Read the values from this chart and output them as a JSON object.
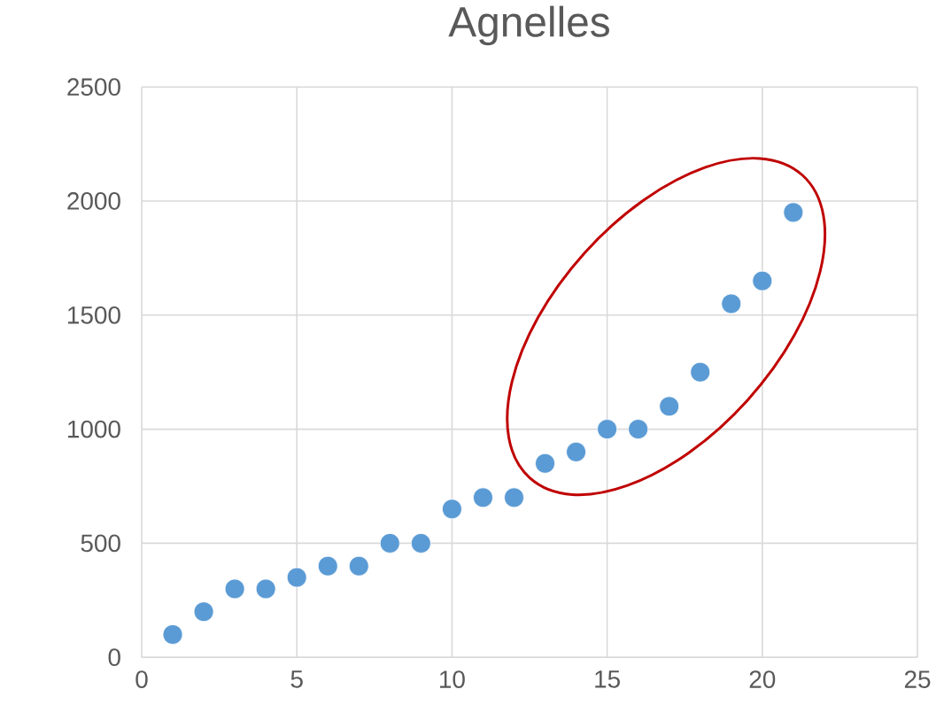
{
  "chart_data": {
    "type": "scatter",
    "title": "Agnelles",
    "x": [
      1,
      2,
      3,
      4,
      5,
      6,
      7,
      8,
      9,
      10,
      11,
      12,
      13,
      14,
      15,
      16,
      17,
      18,
      19,
      20,
      21
    ],
    "values": [
      100,
      200,
      300,
      300,
      350,
      400,
      400,
      500,
      500,
      650,
      700,
      700,
      850,
      900,
      1000,
      1000,
      1100,
      1250,
      1550,
      1650,
      1950
    ],
    "color": "#5b9bd5",
    "marker": "circle",
    "grid": true,
    "xlim": [
      0,
      25
    ],
    "xticks": [
      0,
      5,
      10,
      15,
      20,
      25
    ],
    "ylim": [
      0,
      2500
    ],
    "yticks": [
      0,
      500,
      1000,
      1500,
      2000,
      2500
    ]
  }
}
